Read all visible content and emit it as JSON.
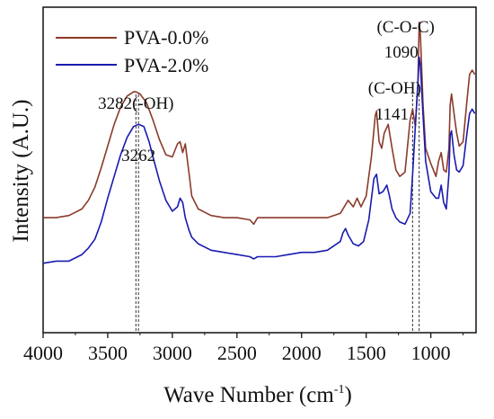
{
  "chart_data": {
    "type": "line",
    "title": "",
    "xlabel": "Wave Number (cm",
    "xlabel_sup": "-1",
    "xlabel_end": ")",
    "ylabel": "Intensity (A.U.)",
    "xlim": [
      4000,
      650
    ],
    "x_reversed": true,
    "x_ticks": [
      4000,
      3500,
      3000,
      2500,
      2000,
      1500,
      1000
    ],
    "x_tick_labels": [
      "4000",
      "3500",
      "3000",
      "2500",
      "2000",
      "1500",
      "1000"
    ],
    "y_ticks_shown": false,
    "legend_position": "top-left",
    "annotations": [
      {
        "text": "3282(-OH)",
        "x": 3282
      },
      {
        "text": "3262",
        "x": 3262
      },
      {
        "text": "(C-OH)",
        "x": 1141
      },
      {
        "text": "1141",
        "x": 1141
      },
      {
        "text": "(C-O-C)",
        "x": 1090
      },
      {
        "text": "1090",
        "x": 1090
      }
    ],
    "reference_lines_x": [
      3282,
      3262,
      1141,
      1090
    ],
    "series": [
      {
        "name": "PVA-0.0%",
        "color": "#8b3a2a",
        "x": [
          4000,
          3900,
          3800,
          3700,
          3650,
          3600,
          3550,
          3500,
          3450,
          3400,
          3350,
          3300,
          3282,
          3250,
          3200,
          3150,
          3100,
          3050,
          3000,
          2960,
          2940,
          2920,
          2900,
          2870,
          2850,
          2800,
          2700,
          2600,
          2500,
          2400,
          2370,
          2340,
          2300,
          2200,
          2100,
          2000,
          1900,
          1800,
          1700,
          1660,
          1640,
          1600,
          1570,
          1540,
          1500,
          1460,
          1430,
          1420,
          1400,
          1380,
          1360,
          1330,
          1300,
          1270,
          1240,
          1200,
          1160,
          1141,
          1120,
          1100,
          1090,
          1080,
          1060,
          1040,
          1000,
          960,
          940,
          920,
          900,
          880,
          860,
          850,
          840,
          820,
          800,
          780,
          750,
          720,
          700,
          680,
          660
        ],
        "y": [
          0.08,
          0.08,
          0.09,
          0.12,
          0.16,
          0.22,
          0.31,
          0.41,
          0.51,
          0.59,
          0.64,
          0.66,
          0.66,
          0.65,
          0.61,
          0.53,
          0.44,
          0.37,
          0.36,
          0.42,
          0.43,
          0.38,
          0.42,
          0.28,
          0.18,
          0.12,
          0.09,
          0.08,
          0.08,
          0.07,
          0.05,
          0.08,
          0.08,
          0.08,
          0.08,
          0.08,
          0.08,
          0.08,
          0.1,
          0.14,
          0.16,
          0.13,
          0.17,
          0.13,
          0.18,
          0.36,
          0.55,
          0.57,
          0.43,
          0.4,
          0.47,
          0.51,
          0.4,
          0.3,
          0.27,
          0.29,
          0.53,
          0.58,
          0.5,
          0.7,
          0.98,
          0.92,
          0.6,
          0.4,
          0.33,
          0.27,
          0.34,
          0.38,
          0.3,
          0.29,
          0.4,
          0.6,
          0.65,
          0.56,
          0.47,
          0.41,
          0.43,
          0.62,
          0.74,
          0.76,
          0.74
        ]
      },
      {
        "name": "PVA-2.0%",
        "color": "#1a1ab0",
        "x": [
          4000,
          3900,
          3800,
          3700,
          3650,
          3600,
          3550,
          3500,
          3450,
          3400,
          3350,
          3300,
          3262,
          3220,
          3180,
          3150,
          3100,
          3050,
          3000,
          2960,
          2940,
          2920,
          2900,
          2870,
          2850,
          2800,
          2700,
          2600,
          2500,
          2400,
          2370,
          2340,
          2300,
          2200,
          2100,
          2000,
          1900,
          1800,
          1700,
          1680,
          1660,
          1640,
          1600,
          1560,
          1520,
          1480,
          1440,
          1420,
          1400,
          1370,
          1340,
          1320,
          1300,
          1270,
          1240,
          1200,
          1160,
          1141,
          1120,
          1100,
          1090,
          1080,
          1060,
          1040,
          1000,
          960,
          940,
          920,
          900,
          880,
          860,
          850,
          840,
          820,
          800,
          780,
          750,
          720,
          700,
          680,
          660
        ],
        "y": [
          -0.13,
          -0.12,
          -0.12,
          -0.09,
          -0.06,
          -0.02,
          0.06,
          0.17,
          0.27,
          0.37,
          0.45,
          0.5,
          0.51,
          0.5,
          0.43,
          0.36,
          0.25,
          0.16,
          0.11,
          0.13,
          0.17,
          0.15,
          0.08,
          0.02,
          -0.01,
          -0.04,
          -0.07,
          -0.08,
          -0.09,
          -0.1,
          -0.11,
          -0.1,
          -0.1,
          -0.1,
          -0.09,
          -0.08,
          -0.08,
          -0.07,
          -0.03,
          0.01,
          0.03,
          0.0,
          -0.04,
          -0.05,
          -0.03,
          0.07,
          0.26,
          0.28,
          0.19,
          0.2,
          0.23,
          0.18,
          0.12,
          0.08,
          0.06,
          0.05,
          0.1,
          0.28,
          0.5,
          0.7,
          0.82,
          0.78,
          0.55,
          0.34,
          0.2,
          0.17,
          0.17,
          0.23,
          0.15,
          0.12,
          0.28,
          0.46,
          0.48,
          0.37,
          0.3,
          0.29,
          0.32,
          0.47,
          0.56,
          0.58,
          0.56
        ]
      }
    ]
  }
}
